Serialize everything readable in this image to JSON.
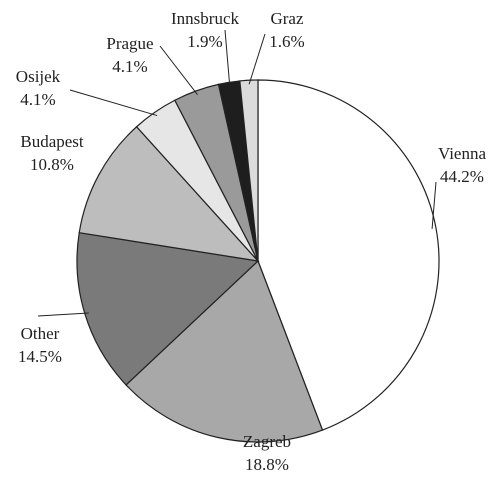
{
  "chart_data": {
    "type": "pie",
    "categories": [
      "Vienna",
      "Zagreb",
      "Other",
      "Budapest",
      "Osijek",
      "Prague",
      "Innsbruck",
      "Graz"
    ],
    "values": [
      44.2,
      18.8,
      14.5,
      10.8,
      4.1,
      4.1,
      1.9,
      1.6
    ],
    "value_labels": [
      "44.2%",
      "18.8%",
      "14.5%",
      "10.8%",
      "4.1%",
      "4.1%",
      "1.9%",
      "1.6%"
    ],
    "colors": [
      "#ffffff",
      "#a8a8a8",
      "#7a7a7a",
      "#bdbdbd",
      "#e6e6e6",
      "#9a9a9a",
      "#1e1e1e",
      "#dcdcdc"
    ]
  }
}
